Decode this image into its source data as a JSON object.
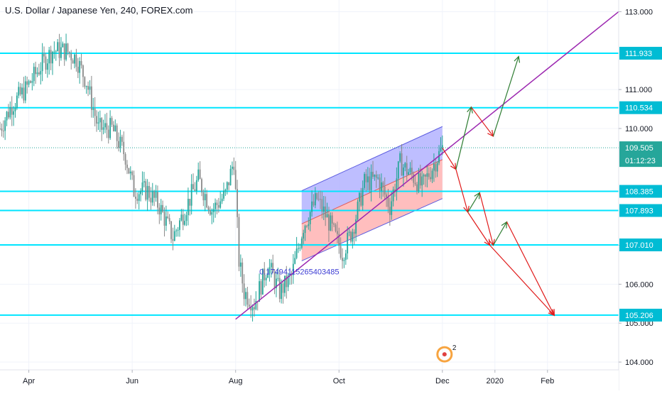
{
  "chart_data": {
    "type": "candlestick",
    "title": "U.S. Dollar / Japanese Yen, 240, FOREX.com",
    "y_range": [
      103.8,
      113.3
    ],
    "x_range": [
      "2019-03-15",
      "2020-03-14"
    ],
    "x_ticks": [
      {
        "label": "Apr",
        "date": "2019-04-01"
      },
      {
        "label": "Jun",
        "date": "2019-06-01"
      },
      {
        "label": "Aug",
        "date": "2019-08-01"
      },
      {
        "label": "Oct",
        "date": "2019-10-01"
      },
      {
        "label": "Dec",
        "date": "2019-12-01"
      },
      {
        "label": "2020",
        "date": "2020-01-01"
      },
      {
        "label": "Feb",
        "date": "2020-02-01"
      }
    ],
    "y_ticks": [
      "104.000",
      "105.000",
      "106.000",
      "107.000",
      "110.000",
      "111.000",
      "113.000"
    ],
    "price_path": [
      {
        "date": "2019-03-15",
        "close": 110.0
      },
      {
        "date": "2019-03-22",
        "close": 110.6
      },
      {
        "date": "2019-03-30",
        "close": 111.0
      },
      {
        "date": "2019-04-08",
        "close": 111.6
      },
      {
        "date": "2019-04-15",
        "close": 112.0
      },
      {
        "date": "2019-04-23",
        "close": 112.0
      },
      {
        "date": "2019-04-29",
        "close": 111.8
      },
      {
        "date": "2019-05-05",
        "close": 111.2
      },
      {
        "date": "2019-05-12",
        "close": 110.0
      },
      {
        "date": "2019-05-20",
        "close": 110.0
      },
      {
        "date": "2019-05-28",
        "close": 109.3
      },
      {
        "date": "2019-06-02",
        "close": 108.4
      },
      {
        "date": "2019-06-10",
        "close": 108.4
      },
      {
        "date": "2019-06-17",
        "close": 108.0
      },
      {
        "date": "2019-06-25",
        "close": 107.2
      },
      {
        "date": "2019-07-02",
        "close": 107.9
      },
      {
        "date": "2019-07-10",
        "close": 108.7
      },
      {
        "date": "2019-07-18",
        "close": 107.9
      },
      {
        "date": "2019-07-26",
        "close": 108.3
      },
      {
        "date": "2019-07-31",
        "close": 109.2
      },
      {
        "date": "2019-08-03",
        "close": 106.6
      },
      {
        "date": "2019-08-06",
        "close": 105.8
      },
      {
        "date": "2019-08-12",
        "close": 105.5
      },
      {
        "date": "2019-08-20",
        "close": 106.5
      },
      {
        "date": "2019-08-27",
        "close": 105.8
      },
      {
        "date": "2019-09-03",
        "close": 106.2
      },
      {
        "date": "2019-09-10",
        "close": 107.5
      },
      {
        "date": "2019-09-18",
        "close": 108.2
      },
      {
        "date": "2019-09-25",
        "close": 107.6
      },
      {
        "date": "2019-10-03",
        "close": 106.8
      },
      {
        "date": "2019-10-09",
        "close": 107.4
      },
      {
        "date": "2019-10-16",
        "close": 108.6
      },
      {
        "date": "2019-10-24",
        "close": 108.7
      },
      {
        "date": "2019-10-31",
        "close": 108.0
      },
      {
        "date": "2019-11-06",
        "close": 109.1
      },
      {
        "date": "2019-11-13",
        "close": 108.8
      },
      {
        "date": "2019-11-19",
        "close": 108.5
      },
      {
        "date": "2019-11-25",
        "close": 109.0
      },
      {
        "date": "2019-12-01",
        "close": 109.5
      }
    ],
    "horizontal_levels": [
      {
        "value": 111.933,
        "label": "111.933"
      },
      {
        "value": 110.534,
        "label": "110.534"
      },
      {
        "value": 108.385,
        "label": "108.385"
      },
      {
        "value": 107.893,
        "label": "107.893"
      },
      {
        "value": 107.01,
        "label": "107.010"
      },
      {
        "value": 105.206,
        "label": "105.206"
      }
    ],
    "current_price": {
      "value": 109.505,
      "label": "109.505",
      "countdown": "01:12:23"
    },
    "trendline": {
      "start": {
        "date": "2019-08-01",
        "price": 105.1
      },
      "end": {
        "date": "2020-03-14",
        "price": 113.0
      }
    },
    "regression_channel": {
      "start": "2019-09-09",
      "end": "2019-12-01",
      "upper": [
        108.4,
        110.05
      ],
      "mid": [
        107.55,
        109.2
      ],
      "lower": [
        106.6,
        108.2
      ]
    },
    "annotation_text": "0.17494115265403485",
    "projection_paths": [
      {
        "color": "#e01b1b",
        "points": [
          {
            "date": "2019-12-01",
            "price": 109.5
          },
          {
            "date": "2019-12-09",
            "price": 108.95
          },
          {
            "date": "2019-12-16",
            "price": 107.85
          },
          {
            "date": "2019-12-29",
            "price": 107.0
          },
          {
            "date": "2020-02-05",
            "price": 105.2
          }
        ]
      },
      {
        "color": "#2e7d32",
        "points": [
          {
            "date": "2019-12-09",
            "price": 108.95
          },
          {
            "date": "2019-12-18",
            "price": 110.55
          }
        ]
      },
      {
        "color": "#e01b1b",
        "points": [
          {
            "date": "2019-12-18",
            "price": 110.55
          },
          {
            "date": "2019-12-31",
            "price": 109.8
          }
        ]
      },
      {
        "color": "#2e7d32",
        "points": [
          {
            "date": "2019-12-31",
            "price": 109.8
          },
          {
            "date": "2020-01-15",
            "price": 111.85
          }
        ]
      },
      {
        "color": "#2e7d32",
        "points": [
          {
            "date": "2019-12-16",
            "price": 107.85
          },
          {
            "date": "2019-12-23",
            "price": 108.35
          }
        ]
      },
      {
        "color": "#e01b1b",
        "points": [
          {
            "date": "2019-12-23",
            "price": 108.35
          },
          {
            "date": "2019-12-31",
            "price": 107.0
          }
        ]
      },
      {
        "color": "#2e7d32",
        "points": [
          {
            "date": "2019-12-31",
            "price": 107.0
          },
          {
            "date": "2020-01-08",
            "price": 107.6
          }
        ]
      },
      {
        "color": "#e01b1b",
        "points": [
          {
            "date": "2020-01-08",
            "price": 107.6
          },
          {
            "date": "2020-02-05",
            "price": 105.2
          }
        ]
      }
    ],
    "events_badge": "2",
    "colors": {
      "level_line": "#00e5ff",
      "trendline": "#9c27b0",
      "channel_upper_fill": "#b3b3ff",
      "channel_lower_fill": "#ffb3b3",
      "channel_border": "#5c5ce0",
      "candle_up": "#26a69a",
      "candle_down": "#8a8a8a",
      "label_bg": "#00bcd4",
      "current_bg": "#26a69a",
      "projection_down": "#e01b1b",
      "projection_up": "#2e7d32"
    }
  }
}
